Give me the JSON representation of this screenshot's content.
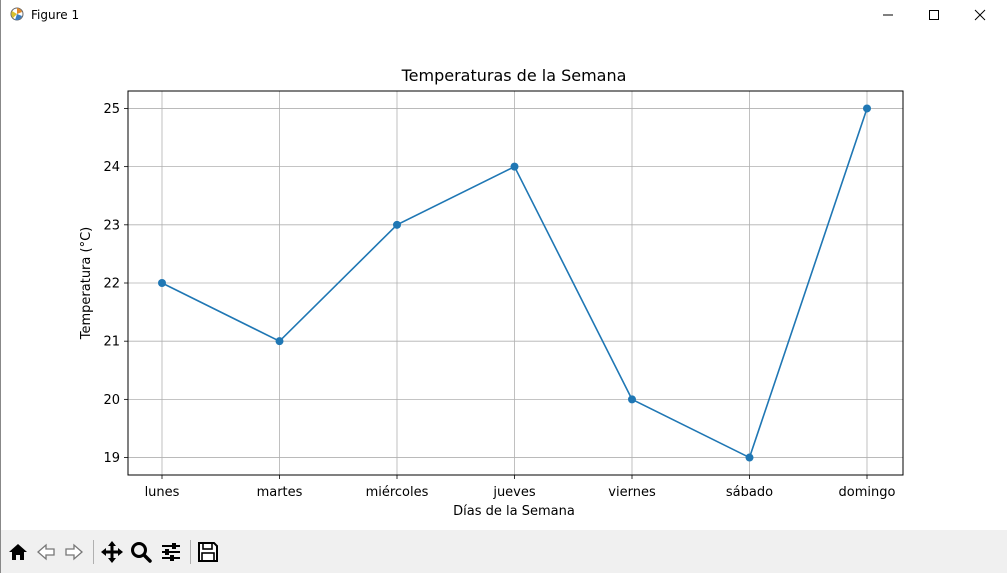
{
  "window": {
    "title": "Figure 1",
    "icon": "matplotlib-icon",
    "controls": [
      "minimize-icon",
      "maximize-icon",
      "close-icon"
    ]
  },
  "toolbar": {
    "items": [
      "home-icon",
      "back-arrow-icon",
      "forward-arrow-icon",
      "pan-icon",
      "zoom-icon",
      "configure-subplots-icon",
      "save-icon"
    ]
  },
  "colors": {
    "line": "#1f77b4",
    "grid": "#b0b0b0",
    "toolbar_bg": "#f0f0f0"
  },
  "chart_data": {
    "type": "line",
    "title": "Temperaturas de la Semana",
    "xlabel": "Días de la Semana",
    "ylabel": "Temperatura (°C)",
    "categories": [
      "lunes",
      "martes",
      "miércoles",
      "jueves",
      "viernes",
      "sábado",
      "domingo"
    ],
    "values": [
      22,
      21,
      23,
      24,
      20,
      19,
      25
    ],
    "yticks": [
      "19",
      "20",
      "21",
      "22",
      "23",
      "24",
      "25"
    ],
    "ylim": [
      18.7,
      25.3
    ],
    "grid": true,
    "marker": "circle"
  }
}
